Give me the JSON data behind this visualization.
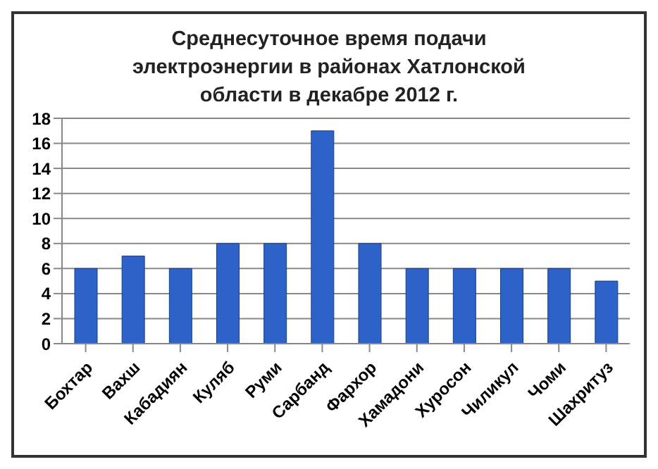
{
  "chart_data": {
    "type": "bar",
    "title": "Среднесуточное время подачи электроэнергии  в районах Хатлонской области в декабре 2012 г.",
    "categories": [
      "Бохтар",
      "Вахш",
      "Кабадиян",
      "Куляб",
      "Руми",
      "Сарбанд",
      "Фархор",
      "Хамадони",
      "Хуросон",
      "Чиликул",
      "Чоми",
      "Шахритуз"
    ],
    "values": [
      6,
      7,
      6,
      8,
      8,
      17,
      8,
      6,
      6,
      6,
      6,
      5
    ],
    "color": "#2d62c8",
    "ylim": [
      0,
      18
    ],
    "yticks": [
      0,
      2,
      4,
      6,
      8,
      10,
      12,
      14,
      16,
      18
    ],
    "grid": "y",
    "legend": false
  }
}
